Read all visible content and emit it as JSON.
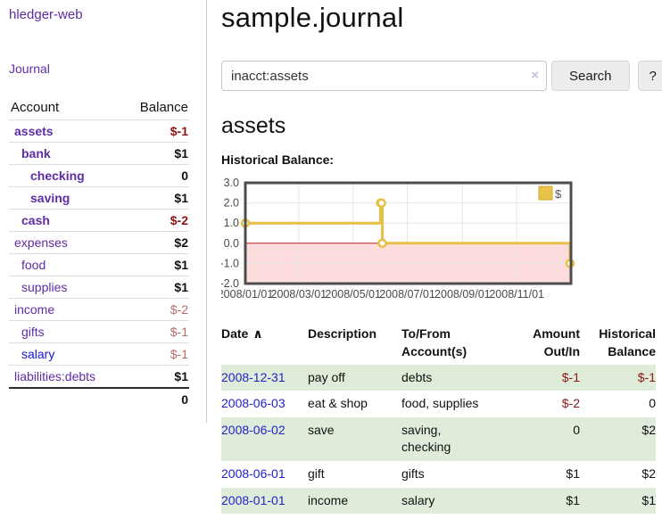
{
  "app": {
    "brand": "hledger-web"
  },
  "colors": {
    "link_purple": "#5e2ca5",
    "link_blue": "#1414d6",
    "negative_strong": "#8b1515",
    "negative_light": "#b26b6b",
    "row_stripe_green": "#dfecd9",
    "chart_line_gold": "#e8bf45",
    "chart_negative_fill": "#fcdcdc",
    "chart_zero_line_red": "#b22222"
  },
  "sidebar": {
    "nav_journal": "Journal",
    "accounts": {
      "header_account": "Account",
      "header_balance": "Balance",
      "rows": [
        {
          "name": "assets",
          "depth": 1,
          "balance": "$-1",
          "tone": "neg-strong",
          "emph": true,
          "link": "purple"
        },
        {
          "name": "bank",
          "depth": 2,
          "balance": "$1",
          "tone": "pos",
          "emph": true,
          "link": "purple"
        },
        {
          "name": "checking",
          "depth": 3,
          "balance": "0",
          "tone": "pos",
          "emph": true,
          "link": "purple"
        },
        {
          "name": "saving",
          "depth": 3,
          "balance": "$1",
          "tone": "pos",
          "emph": true,
          "link": "purple"
        },
        {
          "name": "cash",
          "depth": 2,
          "balance": "$-2",
          "tone": "neg-strong",
          "emph": true,
          "link": "purple"
        },
        {
          "name": "expenses",
          "depth": 1,
          "balance": "$2",
          "tone": "pos",
          "emph": false,
          "link": "purple"
        },
        {
          "name": "food",
          "depth": 2,
          "balance": "$1",
          "tone": "pos",
          "emph": false,
          "link": "purple"
        },
        {
          "name": "supplies",
          "depth": 2,
          "balance": "$1",
          "tone": "pos",
          "emph": false,
          "link": "purple"
        },
        {
          "name": "income",
          "depth": 1,
          "balance": "$-2",
          "tone": "neg-light",
          "emph": false,
          "link": "purple"
        },
        {
          "name": "gifts",
          "depth": 2,
          "balance": "$-1",
          "tone": "neg-light",
          "emph": false,
          "link": "purple"
        },
        {
          "name": "salary",
          "depth": 2,
          "balance": "$-1",
          "tone": "neg-light",
          "emph": false,
          "link": "blue"
        },
        {
          "name": "liabilities:debts",
          "depth": 1,
          "balance": "$1",
          "tone": "pos",
          "emph": false,
          "link": "purple"
        }
      ],
      "total": "0"
    }
  },
  "main": {
    "title": "sample.journal",
    "search": {
      "value": "inacct:assets",
      "clear_icon": "×",
      "button_label": "Search",
      "help_label": "?"
    },
    "account_heading": "assets",
    "chart_label": "Historical Balance:"
  },
  "chart_data": {
    "type": "line",
    "title": "Historical Balance:",
    "step": true,
    "legend": "$",
    "legend_position": "top-right",
    "ylim": [
      -2.0,
      3.0
    ],
    "y_ticks": [
      3.0,
      2.0,
      1.0,
      0.0,
      -1.0,
      -2.0
    ],
    "x_ticks": [
      "2008/01/01",
      "2008/03/01",
      "2008/05/01",
      "2008/07/01",
      "2008/09/01",
      "2008/11/01"
    ],
    "x_range": [
      "2008-01-01",
      "2009-01-01"
    ],
    "negative_region_shaded": true,
    "series": [
      {
        "name": "$",
        "points": [
          [
            "2008-01-01",
            1
          ],
          [
            "2008-06-01",
            2
          ],
          [
            "2008-06-02",
            2
          ],
          [
            "2008-06-03",
            0
          ],
          [
            "2008-12-31",
            -1
          ]
        ]
      }
    ]
  },
  "register": {
    "headers": [
      {
        "label": "Date",
        "sort": "∧",
        "align": "left"
      },
      {
        "label": "Description",
        "sort": "",
        "align": "left"
      },
      {
        "label": "To/From\nAccount(s)",
        "sort": "",
        "align": "left"
      },
      {
        "label": "Amount\nOut/In",
        "sort": "",
        "align": "right"
      },
      {
        "label": "Historical\nBalance",
        "sort": "",
        "align": "right"
      }
    ],
    "rows": [
      {
        "date": "2008-12-31",
        "description": "pay off",
        "accounts": "debts",
        "amount": "$-1",
        "amount_neg": true,
        "balance": "$-1",
        "balance_neg": true
      },
      {
        "date": "2008-06-03",
        "description": "eat & shop",
        "accounts": "food, supplies",
        "amount": "$-2",
        "amount_neg": true,
        "balance": "0",
        "balance_neg": false
      },
      {
        "date": "2008-06-02",
        "description": "save",
        "accounts": "saving,\nchecking",
        "amount": "0",
        "amount_neg": false,
        "balance": "$2",
        "balance_neg": false
      },
      {
        "date": "2008-06-01",
        "description": "gift",
        "accounts": "gifts",
        "amount": "$1",
        "amount_neg": false,
        "balance": "$2",
        "balance_neg": false
      },
      {
        "date": "2008-01-01",
        "description": "income",
        "accounts": "salary",
        "amount": "$1",
        "amount_neg": false,
        "balance": "$1",
        "balance_neg": false
      }
    ]
  }
}
